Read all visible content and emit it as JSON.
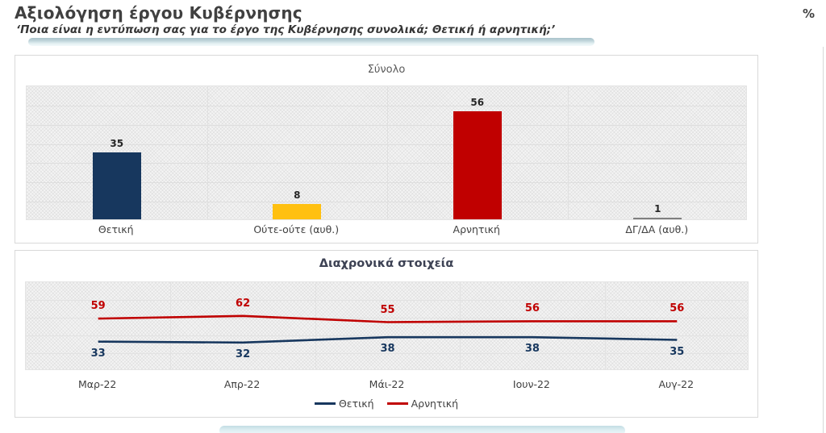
{
  "page": {
    "title": "Αξιολόγηση έργου Κυβέρνησης",
    "subtitle": "‘Ποια είναι η εντύπωση σας για το έργο της Κυβέρνησης συνολικά; Θετική ή αρνητική;’",
    "unit_label": "%"
  },
  "colors": {
    "positive": "#17375e",
    "neutral": "#ffc010",
    "negative": "#c00000",
    "dk_na": "#7f7f7f",
    "underline_accent": "#aac3cb",
    "panel_border": "#d9d9d9"
  },
  "chart_data": [
    {
      "type": "bar",
      "title": "Σύνολο",
      "categories": [
        "Θετική",
        "Ούτε-ούτε (αυθ.)",
        "Αρνητική",
        "ΔΓ/ΔΑ (αυθ.)"
      ],
      "values": [
        35,
        8,
        56,
        1
      ],
      "bar_colors": [
        "#17375e",
        "#ffc010",
        "#c00000",
        "#7f7f7f"
      ],
      "ylim": [
        0,
        70
      ],
      "grid_step": 10,
      "grid": true,
      "legend_position": "none"
    },
    {
      "type": "line",
      "title": "Διαχρονικά στοιχεία",
      "x": [
        "Μαρ-22",
        "Απρ-22",
        "Μάι-22",
        "Ιουν-22",
        "Αυγ-22"
      ],
      "series": [
        {
          "name": "Θετική",
          "values": [
            33,
            32,
            38,
            38,
            35
          ],
          "color": "#17375e",
          "label_side": "below"
        },
        {
          "name": "Αρνητική",
          "values": [
            59,
            62,
            55,
            56,
            56
          ],
          "color": "#c00000",
          "label_side": "above"
        }
      ],
      "ylim": [
        0,
        100
      ],
      "grid_step": 20,
      "grid": true,
      "legend_position": "bottom"
    }
  ]
}
